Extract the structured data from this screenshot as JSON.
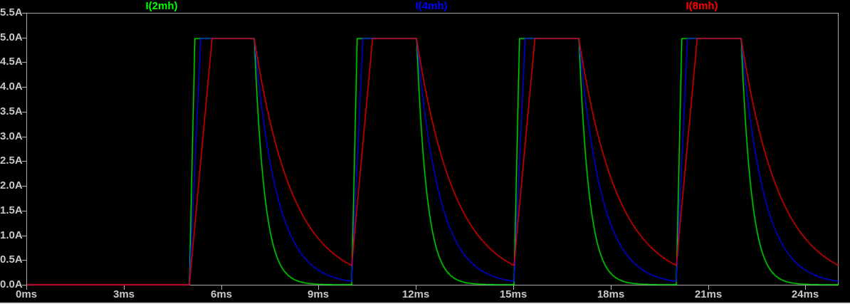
{
  "chart_data": {
    "type": "line",
    "title": "",
    "grid": false,
    "legend_position": "top",
    "background_color": "#000000",
    "axis_color": "#b5b5b5",
    "text_color": "#c8c8c8",
    "x_axis": {
      "unit": "ms",
      "range_ms": [
        0,
        25
      ],
      "tick_values_ms": [
        0,
        3,
        6,
        9,
        12,
        15,
        18,
        21,
        24
      ],
      "tick_labels": [
        "0ms",
        "3ms",
        "6ms",
        "9ms",
        "12ms",
        "15ms",
        "18ms",
        "21ms",
        "24ms"
      ]
    },
    "y_axis": {
      "unit": "A",
      "range_A": [
        0,
        5.5
      ],
      "tick_values_A": [
        0,
        0.5,
        1,
        1.5,
        2,
        2.5,
        3,
        3.5,
        4,
        4.5,
        5,
        5.5
      ],
      "tick_labels": [
        "0.0A",
        "0.5A",
        "1.0A",
        "1.5A",
        "2.0A",
        "2.5A",
        "3.0A",
        "3.5A",
        "4.0A",
        "4.5A",
        "5.0A",
        "5.5A"
      ]
    },
    "pulse_train": {
      "amplitude_A": 5.0,
      "first_pulse_on_ms": 5,
      "on_time_ms": 2,
      "period_ms": 5,
      "pulse_count": 4
    },
    "series": [
      {
        "name": "I(2mh)",
        "color": "#00ff00",
        "inductance_mh": 2,
        "rise_to_5A_ms": 0.17,
        "decay_tau_ms": 0.32,
        "peak_A": 5.0,
        "initial_A": 0.0
      },
      {
        "name": "I(4mh)",
        "color": "#0000ff",
        "inductance_mh": 4,
        "rise_to_5A_ms": 0.35,
        "decay_tau_ms": 0.7,
        "peak_A": 5.0,
        "initial_A": 0.0
      },
      {
        "name": "I(8mh)",
        "color": "#ff0000",
        "inductance_mh": 8,
        "rise_to_5A_ms": 0.7,
        "decay_tau_ms": 1.18,
        "peak_A": 5.0,
        "initial_A": 0.0
      }
    ],
    "draw_order": [
      "I(2mh)",
      "I(4mh)",
      "I(8mh)"
    ]
  }
}
